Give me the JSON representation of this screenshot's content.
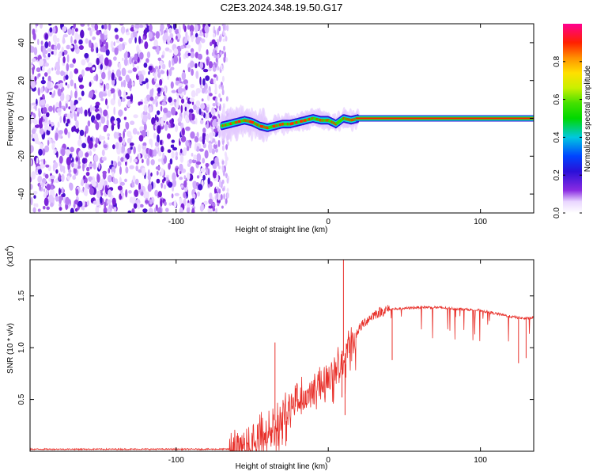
{
  "title": "C2E3.2024.348.19.50.G17",
  "chart_data": [
    {
      "type": "heatmap",
      "name": "spectrogram",
      "xlabel": "Height of straight line (km)",
      "ylabel": "Frequency (Hz)",
      "xlim": [
        -196,
        135
      ],
      "ylim": [
        -50,
        50
      ],
      "xticks": [
        -100,
        0,
        100
      ],
      "xtick_labels": [
        "-100",
        "0",
        "100"
      ],
      "yticks": [
        -40,
        -20,
        0,
        20,
        40
      ],
      "ytick_labels": [
        "-40",
        "-20",
        "0",
        "20",
        "40"
      ],
      "noise_region_x": [
        -196,
        -72
      ],
      "signal_track": {
        "x": [
          -70,
          -65,
          -60,
          -55,
          -50,
          -45,
          -40,
          -35,
          -30,
          -25,
          -20,
          -15,
          -10,
          -5,
          0,
          5,
          10,
          15,
          20,
          40,
          60,
          80,
          100,
          120,
          135
        ],
        "y": [
          -4,
          -3,
          -2,
          -1,
          -2,
          -4,
          -5,
          -4,
          -3,
          -3,
          -2,
          -1,
          0,
          -1,
          -1,
          -3,
          0,
          -1,
          0,
          0,
          0,
          0,
          0,
          0,
          0
        ]
      },
      "colorbar": {
        "label": "Normalized spectral amplitude",
        "ticks": [
          0.0,
          0.2,
          0.4,
          0.6,
          0.8
        ],
        "tick_labels": [
          "0.0",
          "0.2",
          "0.4",
          "0.6",
          "0.8"
        ],
        "range": [
          0,
          1
        ]
      }
    },
    {
      "type": "line",
      "name": "snr",
      "xlabel": "Height of straight line (km)",
      "ylabel": "SNR (10 * v/v)",
      "scale_label": "(x10",
      "scale_exponent": "4",
      "xlim": [
        -196,
        135
      ],
      "ylim": [
        0,
        1.85
      ],
      "xticks": [
        -100,
        0,
        100
      ],
      "xtick_labels": [
        "-100",
        "0",
        "100"
      ],
      "yticks": [
        0.5,
        1.0,
        1.5
      ],
      "ytick_labels": [
        "0.5",
        "1.0",
        "1.5"
      ],
      "color": "#e8302a",
      "envelope": {
        "x": [
          -196,
          -65,
          -60,
          -50,
          -40,
          -30,
          -20,
          -10,
          0,
          5,
          10,
          15,
          20,
          25,
          30,
          35,
          40,
          50,
          60,
          70,
          80,
          90,
          100,
          110,
          120,
          130,
          135
        ],
        "y": [
          0.02,
          0.02,
          0.06,
          0.12,
          0.22,
          0.38,
          0.52,
          0.62,
          0.72,
          0.8,
          0.92,
          1.05,
          1.18,
          1.26,
          1.32,
          1.35,
          1.37,
          1.38,
          1.39,
          1.39,
          1.38,
          1.37,
          1.36,
          1.33,
          1.3,
          1.28,
          1.29
        ]
      },
      "spikes": [
        {
          "x": 10,
          "y": 1.85
        },
        {
          "x": 9,
          "y": 0.52
        },
        {
          "x": 11,
          "y": 0.35
        },
        {
          "x": -35,
          "y": 1.05
        },
        {
          "x": -30,
          "y": 0.12
        },
        {
          "x": 42,
          "y": 0.88
        },
        {
          "x": 125,
          "y": 0.85
        },
        {
          "x": 130,
          "y": 0.9
        }
      ]
    }
  ]
}
